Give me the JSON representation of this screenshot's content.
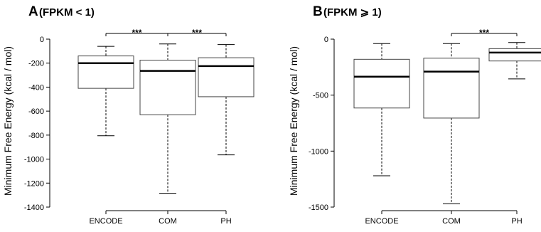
{
  "chart_data": [
    {
      "type": "boxplot",
      "panel_letter": "A",
      "title": "(FPKM < 1)",
      "ylabel": "Minimum Free Energy (kcal / mol)",
      "xlabel": "",
      "categories": [
        "ENCODE",
        "COM",
        "PH"
      ],
      "ylim": [
        -1400,
        0
      ],
      "yticks": [
        0,
        -200,
        -400,
        -600,
        -800,
        -1000,
        -1200,
        -1400
      ],
      "ytick_labels": [
        "0",
        "-200",
        "-400",
        "-600",
        "-800",
        "-1000",
        "-1200",
        "-1400"
      ],
      "boxes": [
        {
          "category": "ENCODE",
          "whisker_low": -805,
          "q1": -410,
          "median": -200,
          "q3": -140,
          "whisker_high": -60
        },
        {
          "category": "COM",
          "whisker_low": -1285,
          "q1": -630,
          "median": -265,
          "q3": -175,
          "whisker_high": -40
        },
        {
          "category": "PH",
          "whisker_low": -965,
          "q1": -480,
          "median": -225,
          "q3": -155,
          "whisker_high": -45
        }
      ],
      "significance": [
        {
          "from": "ENCODE",
          "to": "COM",
          "label": "***"
        },
        {
          "from": "COM",
          "to": "PH",
          "label": "***"
        }
      ]
    },
    {
      "type": "boxplot",
      "panel_letter": "B",
      "title": "(FPKM ⩾ 1)",
      "ylabel": "Minimum Free Energy (kcal / mol)",
      "xlabel": "",
      "categories": [
        "ENCODE",
        "COM",
        "PH"
      ],
      "ylim": [
        -1500,
        0
      ],
      "yticks": [
        0,
        -500,
        -1000,
        -1500
      ],
      "ytick_labels": [
        "0",
        "-500",
        "-1000",
        "-1500"
      ],
      "boxes": [
        {
          "category": "ENCODE",
          "whisker_low": -1220,
          "q1": -615,
          "median": -335,
          "q3": -180,
          "whisker_high": -40
        },
        {
          "category": "COM",
          "whisker_low": -1470,
          "q1": -705,
          "median": -290,
          "q3": -170,
          "whisker_high": -40
        },
        {
          "category": "PH",
          "whisker_low": -355,
          "q1": -195,
          "median": -120,
          "q3": -85,
          "whisker_high": -30
        }
      ],
      "significance": [
        {
          "from": "COM",
          "to": "PH",
          "label": "***"
        }
      ]
    }
  ]
}
